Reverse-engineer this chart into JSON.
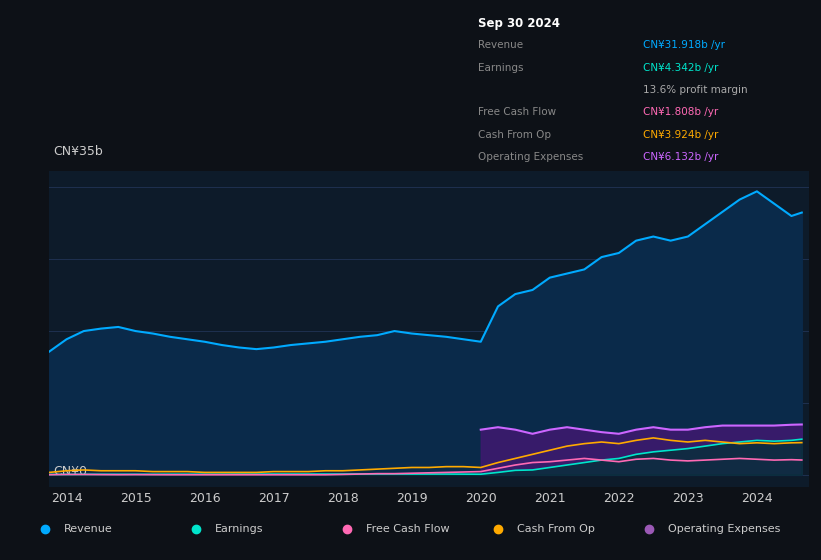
{
  "bg_color": "#0d1117",
  "chart_bg": "#0d1b2a",
  "y_label_top": "CN¥35b",
  "y_label_bottom": "CN¥0",
  "grid_color": "#1e3050",
  "text_color": "#cccccc",
  "revenue_color": "#00aaff",
  "earnings_color": "#00e5cc",
  "fcf_color": "#ff69b4",
  "cashfromop_color": "#ffaa00",
  "opex_color": "#cc66ff",
  "years": [
    2013.75,
    2014.0,
    2014.25,
    2014.5,
    2014.75,
    2015.0,
    2015.25,
    2015.5,
    2015.75,
    2016.0,
    2016.25,
    2016.5,
    2016.75,
    2017.0,
    2017.25,
    2017.5,
    2017.75,
    2018.0,
    2018.25,
    2018.5,
    2018.75,
    2019.0,
    2019.25,
    2019.5,
    2019.75,
    2020.0,
    2020.25,
    2020.5,
    2020.75,
    2021.0,
    2021.25,
    2021.5,
    2021.75,
    2022.0,
    2022.25,
    2022.5,
    2022.75,
    2023.0,
    2023.25,
    2023.5,
    2023.75,
    2024.0,
    2024.25,
    2024.5,
    2024.65
  ],
  "revenue": [
    15.0,
    16.5,
    17.5,
    17.8,
    18.0,
    17.5,
    17.2,
    16.8,
    16.5,
    16.2,
    15.8,
    15.5,
    15.3,
    15.5,
    15.8,
    16.0,
    16.2,
    16.5,
    16.8,
    17.0,
    17.5,
    17.2,
    17.0,
    16.8,
    16.5,
    16.2,
    20.5,
    22.0,
    22.5,
    24.0,
    24.5,
    25.0,
    26.5,
    27.0,
    28.5,
    29.0,
    28.5,
    29.0,
    30.5,
    32.0,
    33.5,
    34.5,
    33.0,
    31.5,
    31.918
  ],
  "earnings": [
    0.05,
    0.05,
    0.06,
    0.07,
    0.07,
    0.07,
    0.07,
    0.08,
    0.08,
    0.08,
    0.08,
    0.09,
    0.09,
    0.1,
    0.1,
    0.1,
    0.1,
    0.1,
    0.11,
    0.11,
    0.11,
    0.1,
    0.1,
    0.1,
    0.09,
    0.08,
    0.3,
    0.55,
    0.6,
    0.9,
    1.2,
    1.5,
    1.8,
    2.0,
    2.5,
    2.8,
    3.0,
    3.2,
    3.5,
    3.8,
    4.0,
    4.2,
    4.1,
    4.2,
    4.342
  ],
  "fcf": [
    0.02,
    0.05,
    0.05,
    0.03,
    0.02,
    0.03,
    0.02,
    0.01,
    0.01,
    0.01,
    0.01,
    0.01,
    0.01,
    0.01,
    0.01,
    0.01,
    0.01,
    0.05,
    0.1,
    0.15,
    0.15,
    0.2,
    0.25,
    0.3,
    0.35,
    0.4,
    0.8,
    1.2,
    1.5,
    1.6,
    1.8,
    2.0,
    1.8,
    1.6,
    1.9,
    2.0,
    1.8,
    1.7,
    1.8,
    1.9,
    2.0,
    1.9,
    1.8,
    1.85,
    1.808
  ],
  "cashfromop": [
    0.3,
    0.5,
    0.6,
    0.5,
    0.5,
    0.5,
    0.4,
    0.4,
    0.4,
    0.3,
    0.3,
    0.3,
    0.3,
    0.4,
    0.4,
    0.4,
    0.5,
    0.5,
    0.6,
    0.7,
    0.8,
    0.9,
    0.9,
    1.0,
    1.0,
    0.9,
    1.5,
    2.0,
    2.5,
    3.0,
    3.5,
    3.8,
    4.0,
    3.8,
    4.2,
    4.5,
    4.2,
    4.0,
    4.2,
    4.0,
    3.8,
    3.9,
    3.8,
    3.9,
    3.924
  ],
  "opex": [
    0.0,
    0.0,
    0.0,
    0.0,
    0.0,
    0.0,
    0.0,
    0.0,
    0.0,
    0.0,
    0.0,
    0.0,
    0.0,
    0.0,
    0.0,
    0.0,
    0.0,
    0.0,
    0.0,
    0.0,
    0.0,
    0.0,
    0.0,
    0.0,
    0.0,
    5.5,
    5.8,
    5.5,
    5.0,
    5.5,
    5.8,
    5.5,
    5.2,
    5.0,
    5.5,
    5.8,
    5.5,
    5.5,
    5.8,
    6.0,
    6.0,
    6.0,
    6.0,
    6.1,
    6.132
  ],
  "xlim": [
    2013.75,
    2024.75
  ],
  "ylim": [
    -1.5,
    37
  ],
  "yticks": [
    0,
    8.75,
    17.5,
    26.25,
    35
  ],
  "xticks": [
    2014,
    2015,
    2016,
    2017,
    2018,
    2019,
    2020,
    2021,
    2022,
    2023,
    2024
  ],
  "legend_entries": [
    "Revenue",
    "Earnings",
    "Free Cash Flow",
    "Cash From Op",
    "Operating Expenses"
  ],
  "legend_colors": [
    "#00aaff",
    "#00e5cc",
    "#ff69b4",
    "#ffaa00",
    "#9b59b6"
  ],
  "legend_bg": "#1a1f2e",
  "info_box": {
    "title": "Sep 30 2024",
    "rows": [
      {
        "label": "Revenue",
        "value": "CN¥31.918b /yr",
        "value_color": "#00aaff"
      },
      {
        "label": "Earnings",
        "value": "CN¥4.342b /yr",
        "value_color": "#00e5cc"
      },
      {
        "label": "",
        "value": "13.6% profit margin",
        "value_color": "#aaaaaa"
      },
      {
        "label": "Free Cash Flow",
        "value": "CN¥1.808b /yr",
        "value_color": "#ff69b4"
      },
      {
        "label": "Cash From Op",
        "value": "CN¥3.924b /yr",
        "value_color": "#ffaa00"
      },
      {
        "label": "Operating Expenses",
        "value": "CN¥6.132b /yr",
        "value_color": "#cc66ff"
      }
    ]
  }
}
